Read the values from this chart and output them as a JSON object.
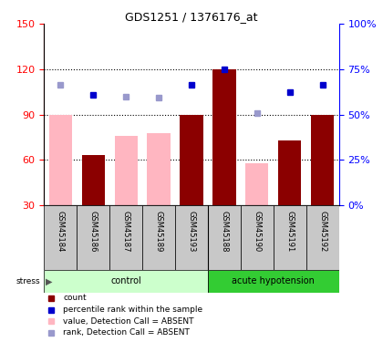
{
  "title": "GDS1251 / 1376176_at",
  "samples": [
    "GSM45184",
    "GSM45186",
    "GSM45187",
    "GSM45189",
    "GSM45193",
    "GSM45188",
    "GSM45190",
    "GSM45191",
    "GSM45192"
  ],
  "count_values": [
    null,
    63,
    null,
    null,
    90,
    120,
    null,
    73,
    90
  ],
  "value_absent": [
    90,
    null,
    76,
    78,
    null,
    null,
    58,
    null,
    null
  ],
  "rank_present": [
    null,
    103,
    null,
    null,
    110,
    120,
    null,
    105,
    110
  ],
  "rank_absent": [
    110,
    null,
    102,
    101,
    null,
    null,
    91,
    null,
    null
  ],
  "left_ylim": [
    30,
    150
  ],
  "right_ylim": [
    0,
    100
  ],
  "left_yticks": [
    30,
    60,
    90,
    120,
    150
  ],
  "right_yticks": [
    0,
    25,
    50,
    75,
    100
  ],
  "right_yticklabels": [
    "0%",
    "25%",
    "50%",
    "75%",
    "100%"
  ],
  "dotted_lines": [
    60,
    90,
    120
  ],
  "bar_color_present": "#8B0000",
  "bar_color_absent": "#FFB6C1",
  "marker_color_present": "#0000CD",
  "marker_color_absent": "#9999CC",
  "group_bg_color_control": "#CCFFCC",
  "group_bg_color_acute": "#33CC33",
  "stress_label": "stress",
  "xlabel_bg": "#C8C8C8",
  "legend_items": [
    "count",
    "percentile rank within the sample",
    "value, Detection Call = ABSENT",
    "rank, Detection Call = ABSENT"
  ],
  "legend_colors": [
    "#8B0000",
    "#0000CD",
    "#FFB6C1",
    "#9999CC"
  ]
}
